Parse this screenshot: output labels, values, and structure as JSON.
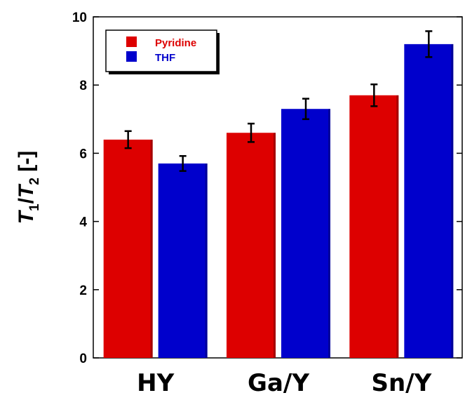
{
  "chart_data": {
    "type": "bar",
    "categories": [
      "HY",
      "Ga/Y",
      "Sn/Y"
    ],
    "series": [
      {
        "name": "Pyridine",
        "color": "#dd0000",
        "values": [
          6.4,
          6.6,
          7.7
        ],
        "errors": [
          0.25,
          0.27,
          0.32
        ]
      },
      {
        "name": "THF",
        "color": "#0000cc",
        "values": [
          5.7,
          7.3,
          9.2
        ],
        "errors": [
          0.22,
          0.3,
          0.38
        ]
      }
    ],
    "ylabel": {
      "t1": "T",
      "s1": "1",
      "slash": "/",
      "t2": "T",
      "s2": "2",
      "unit": " [-]"
    },
    "ylim": [
      0,
      10
    ],
    "yticks": [
      "0",
      "2",
      "4",
      "6",
      "8",
      "10"
    ],
    "legend_position": "top-left",
    "grid": false
  }
}
